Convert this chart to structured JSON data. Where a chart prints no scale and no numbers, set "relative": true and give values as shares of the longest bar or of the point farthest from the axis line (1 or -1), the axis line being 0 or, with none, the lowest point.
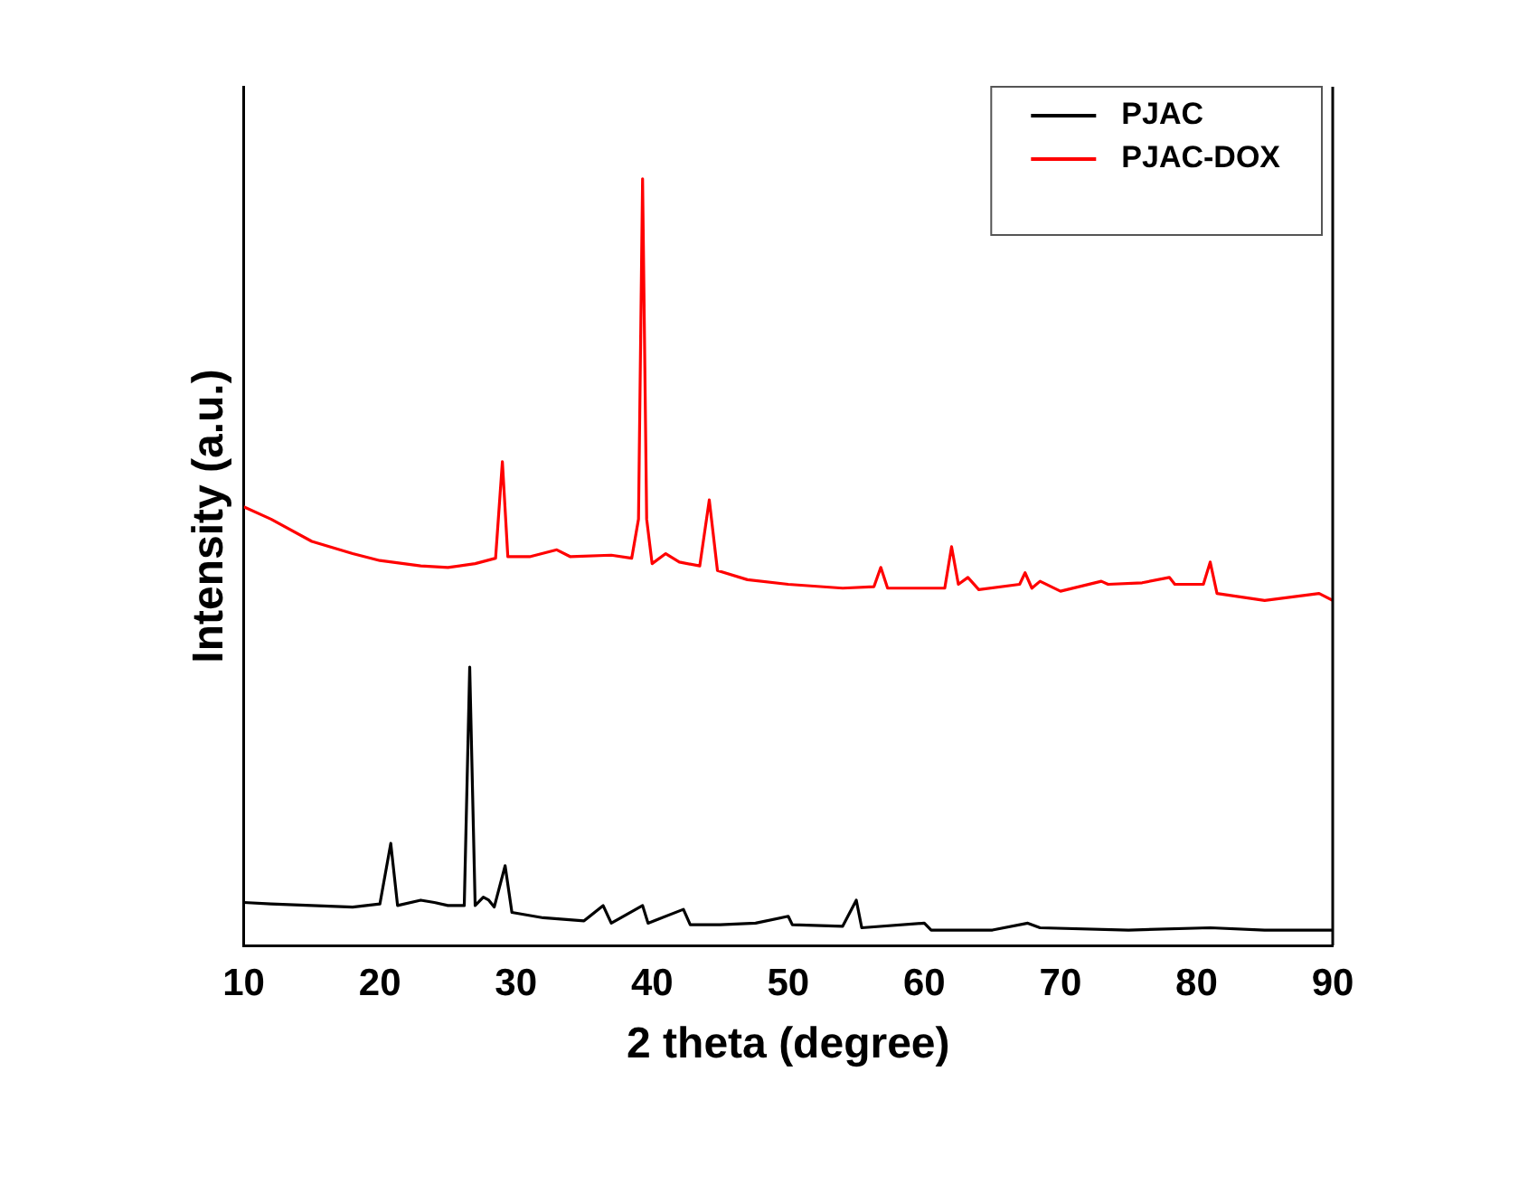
{
  "chart_data": {
    "type": "line",
    "xlabel": "2 theta (degree)",
    "ylabel": "Intensity (a.u.)",
    "relative": true,
    "xlim": [
      10,
      90
    ],
    "xticks": [
      10,
      20,
      30,
      40,
      50,
      60,
      70,
      80,
      90
    ],
    "legend": "top right",
    "grid": false,
    "marker": "none",
    "line_style": "solid",
    "series": [
      {
        "name": "PJAC",
        "color": "#000000",
        "x": [
          10,
          12,
          15,
          18,
          20,
          20.8,
          21.3,
          23,
          24,
          25,
          26.2,
          26.6,
          27,
          27.6,
          28,
          28.4,
          29.2,
          29.7,
          32,
          35,
          36.4,
          37,
          39.3,
          39.7,
          42.3,
          42.8,
          45,
          47.6,
          50,
          50.3,
          54,
          55,
          55.4,
          60,
          60.5,
          65,
          67.6,
          68.5,
          75,
          81,
          85,
          90
        ],
        "values": [
          0.056,
          0.054,
          0.052,
          0.05,
          0.054,
          0.133,
          0.052,
          0.059,
          0.056,
          0.052,
          0.052,
          0.363,
          0.052,
          0.063,
          0.059,
          0.05,
          0.104,
          0.043,
          0.036,
          0.032,
          0.052,
          0.029,
          0.052,
          0.029,
          0.047,
          0.027,
          0.027,
          0.029,
          0.038,
          0.027,
          0.025,
          0.059,
          0.023,
          0.029,
          0.02,
          0.02,
          0.029,
          0.023,
          0.02,
          0.023,
          0.02,
          0.02
        ]
      },
      {
        "name": "PJAC-DOX",
        "color": "#ff0000",
        "x": [
          10,
          12,
          15,
          18,
          20,
          23,
          25,
          27,
          28.5,
          29,
          29.4,
          31,
          33,
          34,
          37,
          38.5,
          39,
          39.3,
          39.6,
          40,
          41,
          42,
          43.5,
          44.2,
          44.8,
          47,
          50,
          54,
          56.3,
          56.8,
          57.3,
          60,
          61.5,
          62,
          62.5,
          63.2,
          64,
          67,
          67.4,
          67.9,
          68.5,
          70,
          73,
          73.5,
          76,
          78,
          78.4,
          80.5,
          81,
          81.5,
          85,
          89,
          90
        ],
        "values": [
          0.572,
          0.556,
          0.527,
          0.511,
          0.502,
          0.495,
          0.493,
          0.498,
          0.505,
          0.631,
          0.507,
          0.507,
          0.516,
          0.507,
          0.509,
          0.505,
          0.556,
          1,
          0.556,
          0.498,
          0.511,
          0.5,
          0.495,
          0.581,
          0.489,
          0.477,
          0.471,
          0.466,
          0.468,
          0.493,
          0.466,
          0.466,
          0.466,
          0.52,
          0.471,
          0.48,
          0.464,
          0.471,
          0.486,
          0.466,
          0.475,
          0.462,
          0.475,
          0.471,
          0.473,
          0.48,
          0.471,
          0.471,
          0.5,
          0.459,
          0.45,
          0.459,
          0.45
        ]
      }
    ]
  }
}
